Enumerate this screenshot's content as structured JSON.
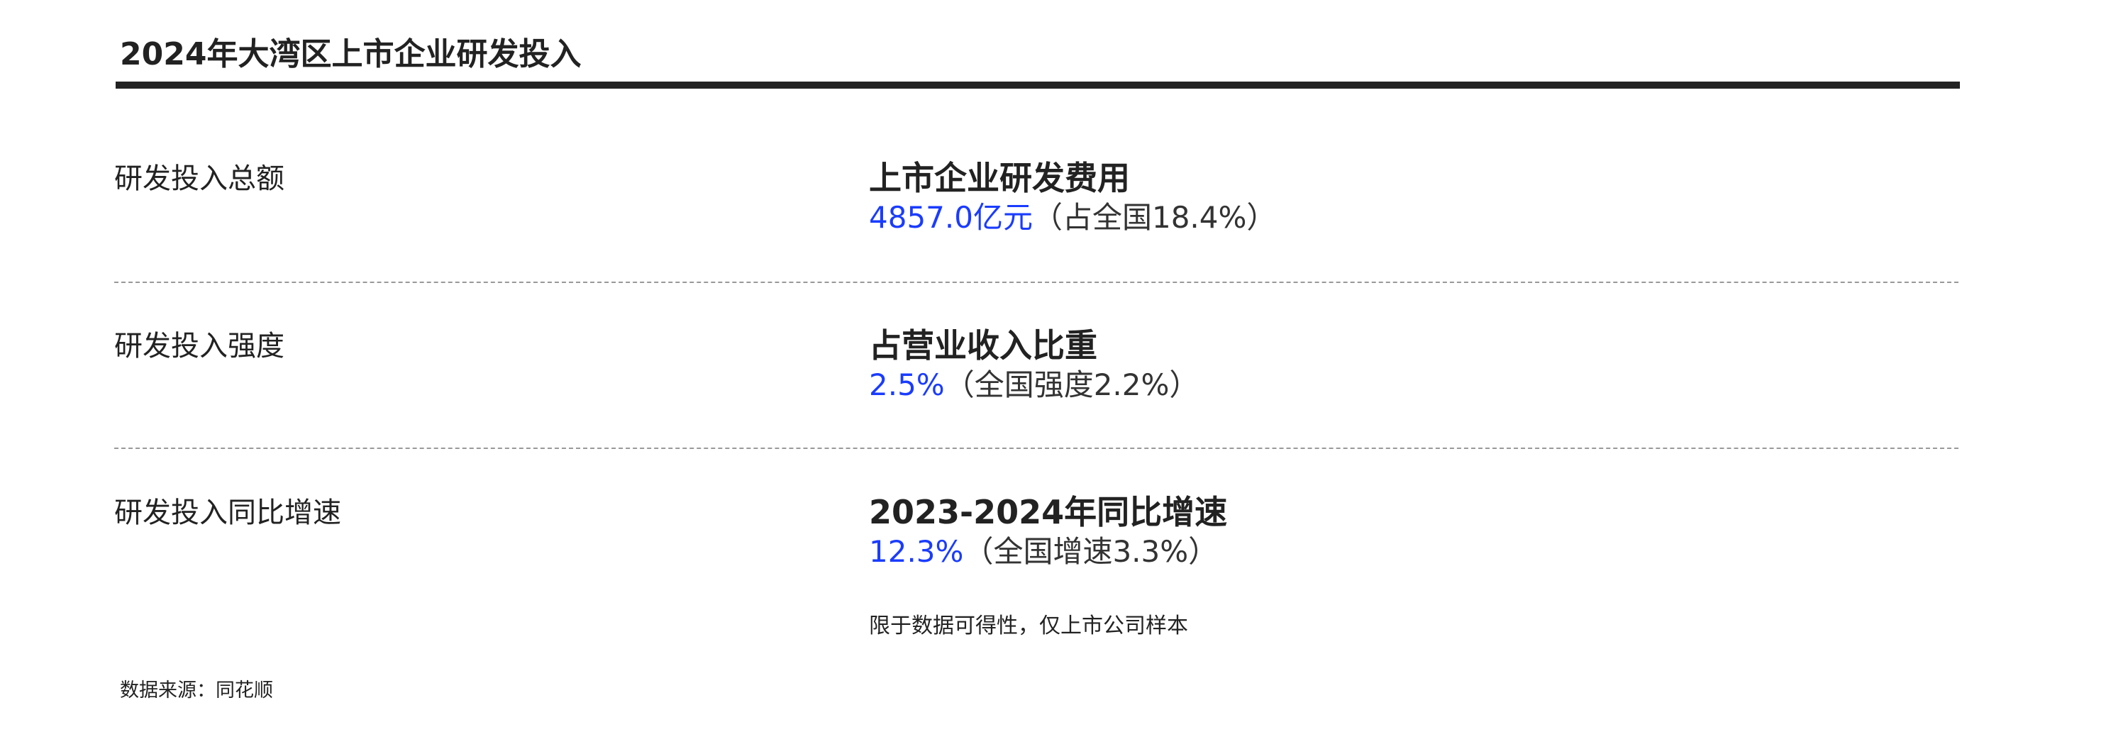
{
  "title": "2024年大湾区上市企业研发投入",
  "highlight_color": "#1a3cff",
  "rows": [
    {
      "label": "研发投入总额",
      "heading": "上市企业研发费用",
      "value": "4857.0亿元",
      "comparison": "（占全国18.4%）"
    },
    {
      "label": "研发投入强度",
      "heading": "占营业收入比重",
      "value": "2.5%",
      "comparison": "（全国强度2.2%）"
    },
    {
      "label": "研发投入同比增速",
      "heading": "2023-2024年同比增速",
      "value": "12.3%",
      "comparison": "（全国增速3.3%）"
    }
  ],
  "note": "限于数据可得性，仅上市公司样本",
  "source": "数据来源：同花顺"
}
